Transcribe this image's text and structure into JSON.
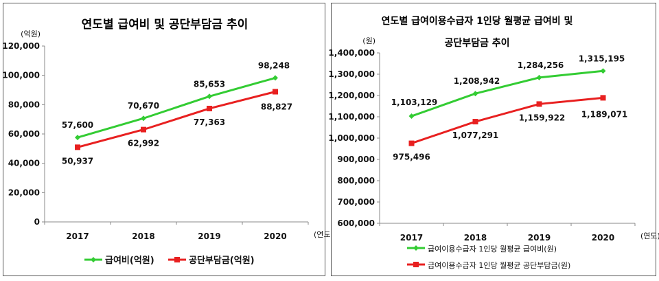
{
  "chart_data": [
    {
      "type": "line",
      "title": "연도별 급여비 및 공단부담금 추이",
      "y_unit": "(억원)",
      "x_unit": "(연도)",
      "categories": [
        "2017",
        "2018",
        "2019",
        "2020"
      ],
      "ylim": [
        0,
        120000
      ],
      "yticks": [
        "0",
        "20,000",
        "40,000",
        "60,000",
        "80,000",
        "100,000",
        "120,000"
      ],
      "grid": false,
      "legend_position": "bottom",
      "series": [
        {
          "name": "급여비(억원)",
          "color": "#33cc33",
          "marker": "diamond",
          "values": [
            57600,
            70670,
            85653,
            98248
          ],
          "labels": [
            "57,600",
            "70,670",
            "85,653",
            "98,248"
          ]
        },
        {
          "name": "공단부담금(억원)",
          "color": "#e82020",
          "marker": "square",
          "values": [
            50937,
            62992,
            77363,
            88827
          ],
          "labels": [
            "50,937",
            "62,992",
            "77,363",
            "88,827"
          ]
        }
      ]
    },
    {
      "type": "line",
      "title_line1": "연도별 급여이용수급자 1인당 월평균 급여비 및",
      "title_line2": "공단부담금 추이",
      "y_unit": "(원)",
      "x_unit": "(연도)",
      "categories": [
        "2017",
        "2018",
        "2019",
        "2020"
      ],
      "ylim": [
        600000,
        1400000
      ],
      "yticks": [
        "600,000",
        "700,000",
        "800,000",
        "900,000",
        "1,000,000",
        "1,100,000",
        "1,200,000",
        "1,300,000",
        "1,400,000"
      ],
      "grid": false,
      "legend_position": "bottom-left",
      "series": [
        {
          "name": "급여이용수급자 1인당 월평균 급여비(원)",
          "color": "#33cc33",
          "marker": "diamond",
          "values": [
            1103129,
            1208942,
            1284256,
            1315195
          ],
          "labels": [
            "1,103,129",
            "1,208,942",
            "1,284,256",
            "1,315,195"
          ]
        },
        {
          "name": "급여이용수급자 1인당 월평균 공단부담금(원)",
          "color": "#e82020",
          "marker": "square",
          "values": [
            975496,
            1077291,
            1159922,
            1189071
          ],
          "labels": [
            "975,496",
            "1,077,291",
            "1,159,922",
            "1,189,071"
          ]
        }
      ]
    }
  ]
}
